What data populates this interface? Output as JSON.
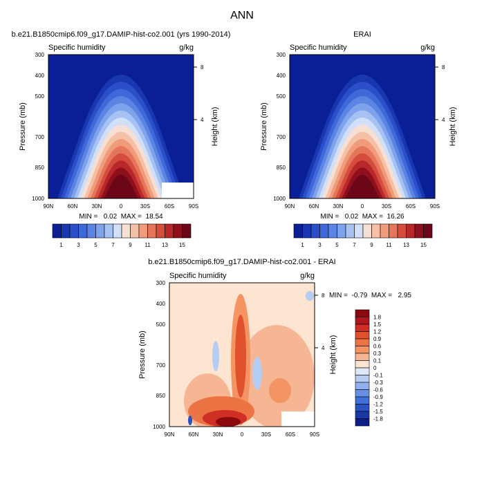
{
  "figure_title": "ANN",
  "chart_data": [
    {
      "type": "heatmap",
      "title": "b.e21.B1850cmip6.f09_g17.DAMIP-hist-co2.001 (yrs 1990-2014)",
      "left_label": "Specific humidity",
      "right_label": "g/kg",
      "ylabel": "Pressure (mb)",
      "y2label": "Height (km)",
      "x_ticks": [
        "90N",
        "60N",
        "30N",
        "0",
        "30S",
        "60S",
        "90S"
      ],
      "y_ticks": [
        "300",
        "400",
        "500",
        "700",
        "850",
        "1000"
      ],
      "y2_ticks": [
        "8",
        "4"
      ],
      "stats": "MIN =   0.02  MAX =  18.54",
      "colorbar": {
        "orientation": "horizontal",
        "labels": [
          "1",
          "3",
          "5",
          "7",
          "9",
          "11",
          "13",
          "15"
        ],
        "levels": [
          1,
          2,
          3,
          4,
          5,
          6,
          7,
          8,
          9,
          10,
          11,
          12,
          13,
          14,
          15
        ],
        "colors": [
          "#0a1f96",
          "#1837b0",
          "#2b4fc8",
          "#3f68d8",
          "#5c85e3",
          "#7ea3ec",
          "#a6c2f2",
          "#d1e0f8",
          "#f6e0d3",
          "#f6c0a6",
          "#f09c7b",
          "#e6765a",
          "#d44d3d",
          "#b8282a",
          "#8f0f1c",
          "#6b0716"
        ]
      },
      "xlim": [
        90,
        -90
      ],
      "ylim_mb": [
        1000,
        300
      ],
      "peak_value_gkg": 18.54,
      "masked_regions": [
        "southern high latitudes below ~900 mb"
      ]
    },
    {
      "type": "heatmap",
      "title": "ERAI",
      "left_label": "Specific humidity",
      "right_label": "g/kg",
      "ylabel": "Pressure (mb)",
      "y2label": "Height (km)",
      "x_ticks": [
        "90N",
        "60N",
        "30N",
        "0",
        "30S",
        "60S",
        "90S"
      ],
      "y_ticks": [
        "300",
        "400",
        "500",
        "700",
        "850",
        "1000"
      ],
      "y2_ticks": [
        "8",
        "4"
      ],
      "stats": "MIN =   0.02  MAX =  16.26",
      "colorbar": {
        "orientation": "horizontal",
        "labels": [
          "1",
          "3",
          "5",
          "7",
          "9",
          "11",
          "13",
          "15"
        ],
        "levels": [
          1,
          2,
          3,
          4,
          5,
          6,
          7,
          8,
          9,
          10,
          11,
          12,
          13,
          14,
          15
        ],
        "colors": [
          "#0a1f96",
          "#1837b0",
          "#2b4fc8",
          "#3f68d8",
          "#5c85e3",
          "#7ea3ec",
          "#a6c2f2",
          "#d1e0f8",
          "#f6e0d3",
          "#f6c0a6",
          "#f09c7b",
          "#e6765a",
          "#d44d3d",
          "#b8282a",
          "#8f0f1c",
          "#6b0716"
        ]
      },
      "xlim": [
        90,
        -90
      ],
      "ylim_mb": [
        1000,
        300
      ],
      "peak_value_gkg": 16.26
    },
    {
      "type": "heatmap",
      "title": "b.e21.B1850cmip6.f09_g17.DAMIP-hist-co2.001 - ERAI",
      "left_label": "Specific humidity",
      "right_label": "g/kg",
      "ylabel": "Pressure (mb)",
      "y2label": "Height (km)",
      "x_ticks": [
        "90N",
        "60N",
        "30N",
        "0",
        "30S",
        "60S",
        "90S"
      ],
      "y_ticks": [
        "300",
        "400",
        "500",
        "700",
        "850",
        "1000"
      ],
      "y2_ticks": [
        "8",
        "4"
      ],
      "stats": "MIN =  -0.79  MAX =   2.95",
      "colorbar": {
        "orientation": "vertical",
        "labels": [
          "1.8",
          "1.5",
          "1.2",
          "0.9",
          "0.6",
          "0.3",
          "0.1",
          "0",
          "-0.1",
          "-0.3",
          "-0.6",
          "-0.9",
          "-1.2",
          "-1.5",
          "-1.8"
        ],
        "levels": [
          -1.8,
          -1.5,
          -1.2,
          -0.9,
          -0.6,
          -0.3,
          -0.1,
          0,
          0.1,
          0.3,
          0.6,
          0.9,
          1.2,
          1.5,
          1.8
        ],
        "colors": [
          "#8b0a0f",
          "#b0171d",
          "#cf2f25",
          "#e0512d",
          "#eb7344",
          "#f49463",
          "#f7b693",
          "#fde5d2",
          "#dde9f6",
          "#b6cdf1",
          "#8fb0ec",
          "#6690e4",
          "#406fd8",
          "#2a52c3",
          "#1a38a6",
          "#0c1f86"
        ]
      },
      "xlim": [
        90,
        -90
      ],
      "ylim_mb": [
        1000,
        300
      ],
      "min_value_gkg": -0.79,
      "max_value_gkg": 2.95
    }
  ]
}
